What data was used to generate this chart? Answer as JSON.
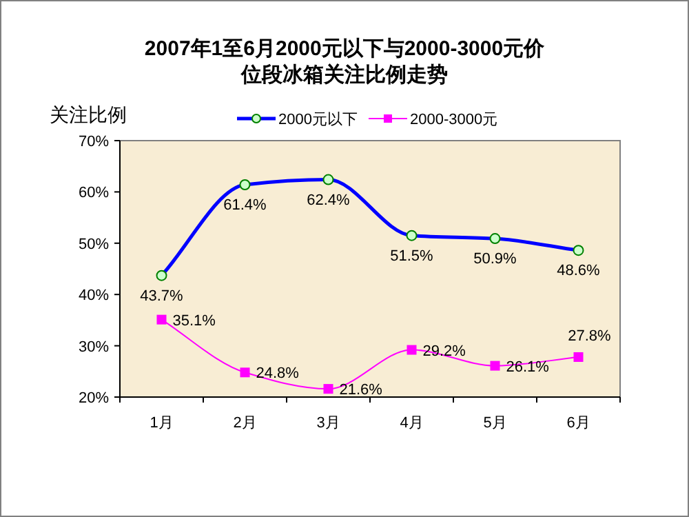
{
  "chart_data": {
    "type": "line",
    "title": "2007年1至6月2000元以下与2000-3000元价位段冰箱关注比例走势",
    "ylabel": "关注比例",
    "categories": [
      "1月",
      "2月",
      "3月",
      "4月",
      "5月",
      "6月"
    ],
    "series": [
      {
        "name": "2000元以下",
        "color": "#0000ff",
        "marker": "circle",
        "values": [
          43.7,
          61.4,
          62.4,
          51.5,
          50.9,
          48.6
        ],
        "value_labels": [
          "43.7%",
          "61.4%",
          "62.4%",
          "51.5%",
          "50.9%",
          "48.6%"
        ]
      },
      {
        "name": "2000-3000元",
        "color": "#ff00ff",
        "marker": "square",
        "values": [
          35.1,
          24.8,
          21.6,
          29.2,
          26.1,
          27.8
        ],
        "value_labels": [
          "35.1%",
          "24.8%",
          "21.6%",
          "29.2%",
          "26.1%",
          "27.8%"
        ]
      }
    ],
    "ylim": [
      20,
      70
    ],
    "yticks": [
      {
        "value": 20,
        "label": "20%"
      },
      {
        "value": 30,
        "label": "30%"
      },
      {
        "value": 40,
        "label": "40%"
      },
      {
        "value": 50,
        "label": "50%"
      },
      {
        "value": 60,
        "label": "60%"
      },
      {
        "value": 70,
        "label": "70%"
      }
    ],
    "grid": false,
    "legend": "top",
    "line_style": "solid"
  }
}
